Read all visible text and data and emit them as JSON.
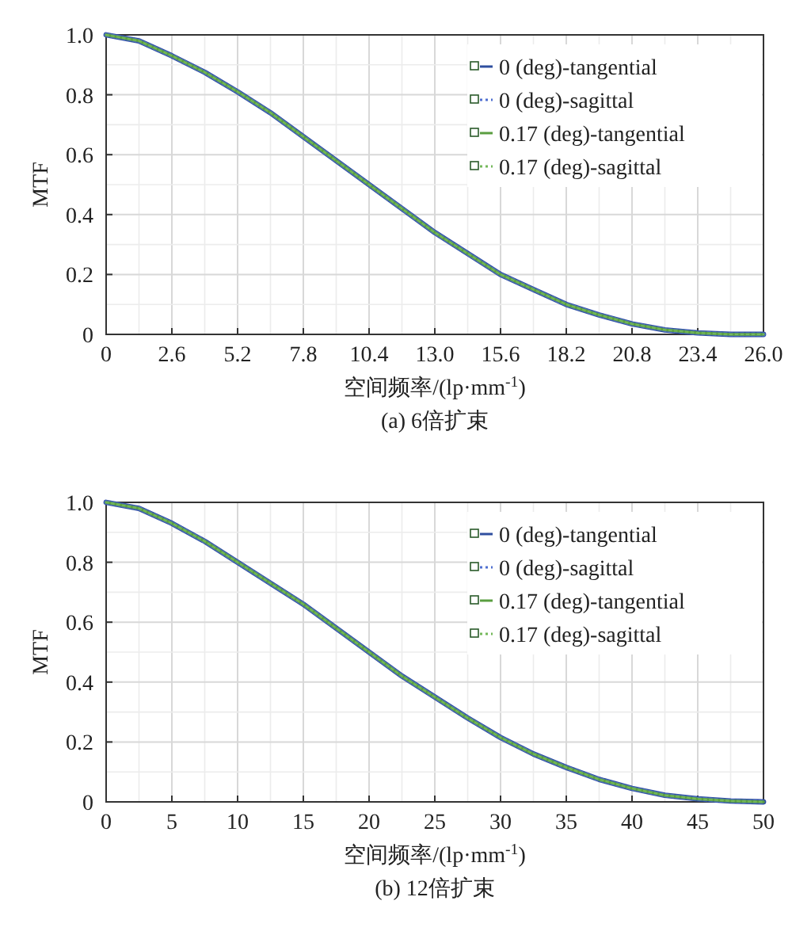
{
  "chart_data": [
    {
      "type": "line",
      "title": "(a) 6倍扩束",
      "xlabel": "空间频率/(lp·mm$^{-1}$)",
      "ylabel": "MTF",
      "x": [
        0,
        1.3,
        2.6,
        3.9,
        5.2,
        6.5,
        7.8,
        9.1,
        10.4,
        11.7,
        13.0,
        14.3,
        15.6,
        16.9,
        18.2,
        19.5,
        20.8,
        22.1,
        23.4,
        24.7,
        26.0
      ],
      "series": [
        {
          "name": "0 (deg)-tangential",
          "color": "#2f4f9f",
          "line_style": "solid",
          "values": [
            1.0,
            0.98,
            0.93,
            0.875,
            0.81,
            0.74,
            0.66,
            0.58,
            0.5,
            0.42,
            0.34,
            0.27,
            0.2,
            0.15,
            0.1,
            0.065,
            0.035,
            0.015,
            0.005,
            0.0,
            0.0
          ]
        },
        {
          "name": "0 (deg)-sagittal",
          "color": "#4f6fd0",
          "line_style": "dotted",
          "values": [
            1.0,
            0.98,
            0.93,
            0.875,
            0.81,
            0.74,
            0.66,
            0.58,
            0.5,
            0.42,
            0.34,
            0.27,
            0.2,
            0.15,
            0.1,
            0.065,
            0.035,
            0.015,
            0.005,
            0.0,
            0.0
          ]
        },
        {
          "name": "0.17 (deg)-tangential",
          "color": "#5a9e40",
          "line_style": "solid",
          "values": [
            1.0,
            0.98,
            0.93,
            0.875,
            0.81,
            0.74,
            0.66,
            0.58,
            0.5,
            0.42,
            0.34,
            0.27,
            0.2,
            0.15,
            0.1,
            0.065,
            0.035,
            0.015,
            0.005,
            0.0,
            0.0
          ]
        },
        {
          "name": "0.17 (deg)-sagittal",
          "color": "#74b85a",
          "line_style": "dotted",
          "values": [
            1.0,
            0.98,
            0.93,
            0.875,
            0.81,
            0.74,
            0.66,
            0.58,
            0.5,
            0.42,
            0.34,
            0.27,
            0.2,
            0.15,
            0.1,
            0.065,
            0.035,
            0.015,
            0.005,
            0.0,
            0.0
          ]
        }
      ],
      "xlim": [
        0,
        26
      ],
      "ylim": [
        0,
        1
      ],
      "xticks": [
        0,
        2.6,
        5.2,
        7.8,
        10.4,
        {
          "value": 13,
          "label": "13.0"
        },
        15.6,
        18.2,
        20.8,
        23.4,
        {
          "value": 26,
          "label": "26.0"
        }
      ],
      "yticks": [
        0,
        0.2,
        0.4,
        0.6,
        0.8,
        {
          "value": 1,
          "label": "1.0"
        }
      ],
      "grid": true,
      "legend": "top right"
    },
    {
      "type": "line",
      "title": "(b) 12倍扩束",
      "xlabel": "空间频率/(lp·mm$^{-1}$)",
      "ylabel": "MTF",
      "x": [
        0,
        2.5,
        5,
        7.5,
        10,
        12.5,
        15,
        17.5,
        20,
        22.5,
        25,
        27.5,
        30,
        32.5,
        35,
        37.5,
        40,
        42.5,
        45,
        47.5,
        50
      ],
      "series": [
        {
          "name": "0 (deg)-tangential",
          "color": "#2f4f9f",
          "line_style": "solid",
          "values": [
            1.0,
            0.98,
            0.93,
            0.87,
            0.8,
            0.73,
            0.66,
            0.58,
            0.5,
            0.42,
            0.35,
            0.28,
            0.215,
            0.16,
            0.115,
            0.075,
            0.045,
            0.022,
            0.01,
            0.003,
            0.0
          ]
        },
        {
          "name": "0 (deg)-sagittal",
          "color": "#4f6fd0",
          "line_style": "dotted",
          "values": [
            1.0,
            0.98,
            0.93,
            0.87,
            0.8,
            0.73,
            0.66,
            0.58,
            0.5,
            0.42,
            0.35,
            0.28,
            0.215,
            0.16,
            0.115,
            0.075,
            0.045,
            0.022,
            0.01,
            0.003,
            0.0
          ]
        },
        {
          "name": "0.17 (deg)-tangential",
          "color": "#5a9e40",
          "line_style": "solid",
          "values": [
            1.0,
            0.98,
            0.93,
            0.87,
            0.8,
            0.73,
            0.66,
            0.58,
            0.5,
            0.42,
            0.35,
            0.28,
            0.215,
            0.16,
            0.115,
            0.075,
            0.045,
            0.022,
            0.01,
            0.003,
            0.0
          ]
        },
        {
          "name": "0.17 (deg)-sagittal",
          "color": "#74b85a",
          "line_style": "dotted",
          "values": [
            1.0,
            0.98,
            0.93,
            0.87,
            0.8,
            0.73,
            0.66,
            0.58,
            0.5,
            0.42,
            0.35,
            0.28,
            0.215,
            0.16,
            0.115,
            0.075,
            0.045,
            0.022,
            0.01,
            0.003,
            0.0
          ]
        }
      ],
      "xlim": [
        0,
        50
      ],
      "ylim": [
        0,
        1
      ],
      "xticks": [
        0,
        5,
        10,
        15,
        20,
        25,
        30,
        35,
        40,
        45,
        50
      ],
      "yticks": [
        0,
        0.2,
        0.4,
        0.6,
        0.8,
        {
          "value": 1,
          "label": "1.0"
        }
      ],
      "grid": true,
      "legend": "top right"
    }
  ]
}
